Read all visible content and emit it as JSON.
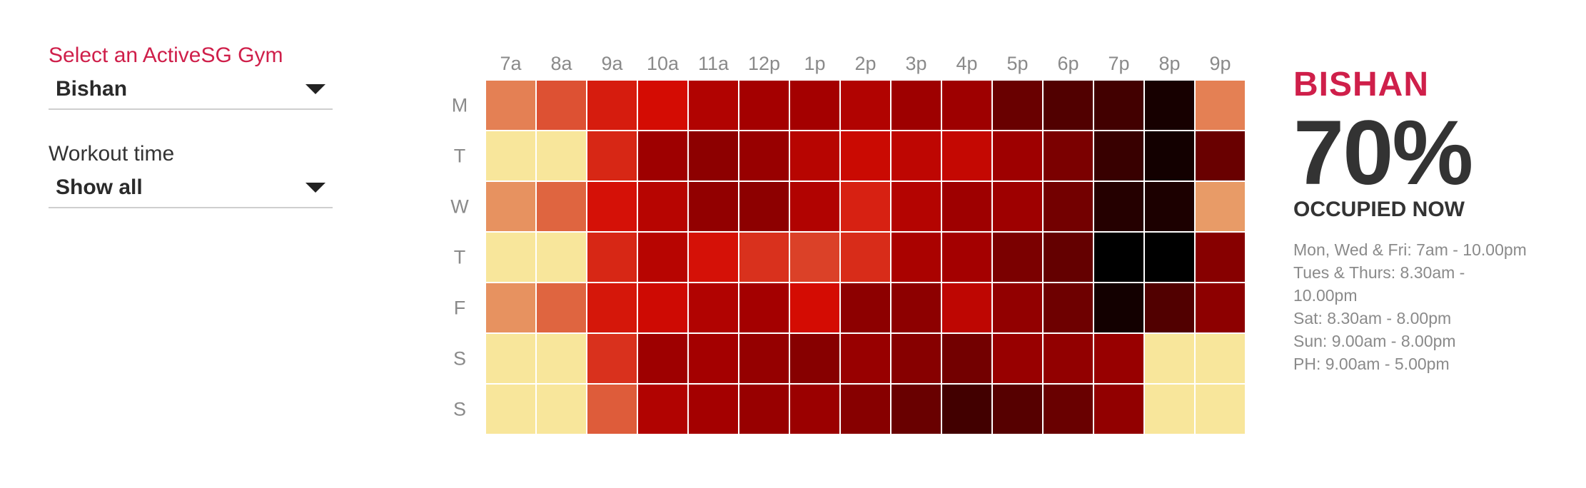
{
  "controls": {
    "gym_label": "Select an ActiveSG Gym",
    "gym_value": "Bishan",
    "workout_label": "Workout time",
    "workout_value": "Show all"
  },
  "summary": {
    "gym_name": "BISHAN",
    "percent": "70%",
    "status": "OCCUPIED NOW",
    "hours": [
      "Mon, Wed & Fri: 7am - 10.00pm",
      "Tues & Thurs: 8.30am -",
      "10.00pm",
      "Sat: 8.30am - 8.00pm",
      "Sun: 9.00am - 8.00pm",
      "PH: 9.00am - 5.00pm"
    ]
  },
  "chart_data": {
    "type": "heatmap",
    "x": [
      "7a",
      "8a",
      "9a",
      "10a",
      "11a",
      "12p",
      "1p",
      "2p",
      "3p",
      "4p",
      "5p",
      "6p",
      "7p",
      "8p",
      "9p"
    ],
    "y": [
      "M",
      "T",
      "W",
      "T",
      "F",
      "S",
      "S"
    ],
    "values": [
      [
        0.22,
        0.32,
        0.42,
        0.45,
        0.56,
        0.6,
        0.6,
        0.56,
        0.62,
        0.62,
        0.78,
        0.83,
        0.86,
        0.95,
        0.22
      ],
      [
        0.02,
        0.02,
        0.4,
        0.62,
        0.68,
        0.64,
        0.54,
        0.48,
        0.52,
        0.5,
        0.62,
        0.74,
        0.88,
        0.96,
        0.78
      ],
      [
        0.18,
        0.28,
        0.44,
        0.54,
        0.66,
        0.68,
        0.56,
        0.41,
        0.55,
        0.62,
        0.62,
        0.76,
        0.92,
        0.94,
        0.16
      ],
      [
        0.02,
        0.02,
        0.4,
        0.54,
        0.44,
        0.38,
        0.35,
        0.39,
        0.58,
        0.6,
        0.74,
        0.79,
        1.0,
        1.0,
        0.7
      ],
      [
        0.18,
        0.28,
        0.43,
        0.47,
        0.56,
        0.6,
        0.45,
        0.68,
        0.68,
        0.52,
        0.66,
        0.77,
        0.96,
        0.83,
        0.68
      ],
      [
        0.02,
        0.02,
        0.38,
        0.62,
        0.6,
        0.65,
        0.7,
        0.64,
        0.7,
        0.76,
        0.64,
        0.66,
        0.64,
        0.02,
        0.02
      ],
      [
        0.02,
        0.02,
        0.3,
        0.56,
        0.6,
        0.64,
        0.63,
        0.7,
        0.78,
        0.86,
        0.82,
        0.78,
        0.66,
        0.02,
        0.02
      ]
    ],
    "color_scale": {
      "stops": [
        [
          0.0,
          "#faf1a2"
        ],
        [
          0.15,
          "#e9a06a"
        ],
        [
          0.3,
          "#de5c3a"
        ],
        [
          0.45,
          "#d40c03"
        ],
        [
          0.6,
          "#a40000"
        ],
        [
          0.75,
          "#780000"
        ],
        [
          0.88,
          "#380000"
        ],
        [
          1.0,
          "#000000"
        ]
      ]
    },
    "title": "",
    "xlabel": "",
    "ylabel": ""
  }
}
